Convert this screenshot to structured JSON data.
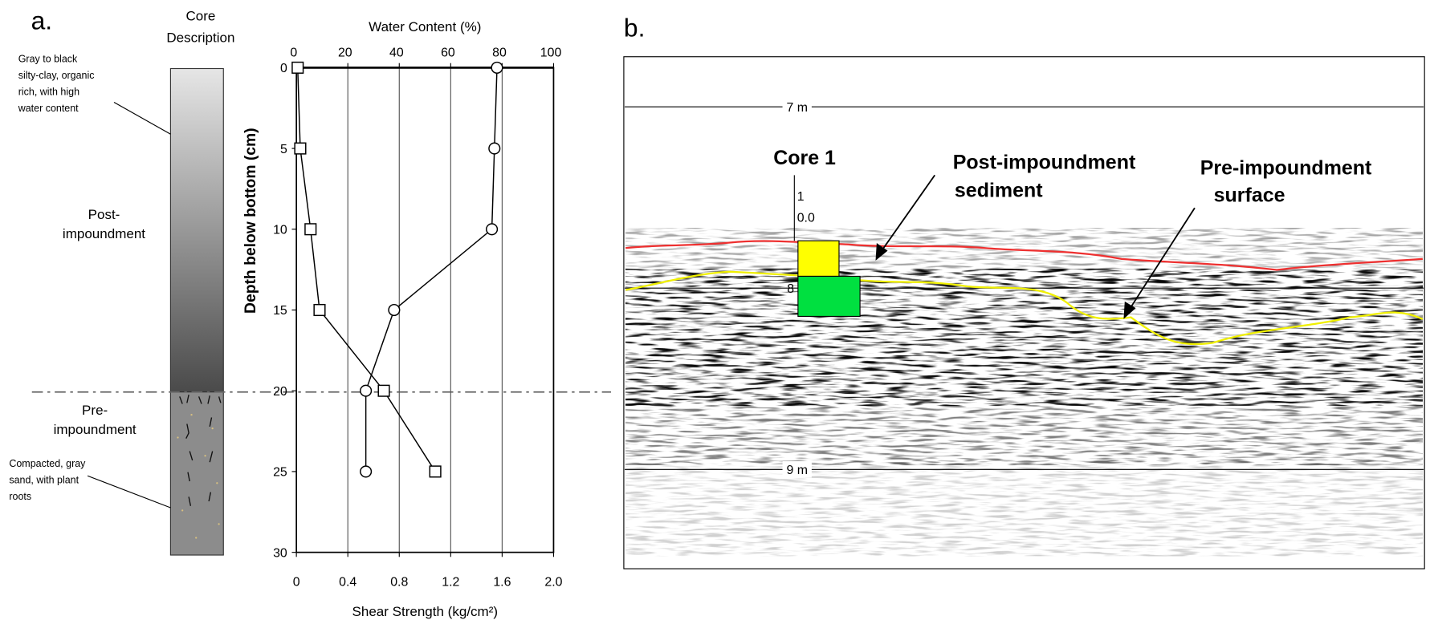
{
  "panel_a": {
    "label": "a.",
    "core_heading": [
      "Core",
      "Description"
    ],
    "top_note": [
      "Gray to black",
      "silty-clay, organic",
      "rich, with high",
      "water content"
    ],
    "upper_unit": [
      "Post-",
      "impoundment"
    ],
    "lower_unit": [
      "Pre-",
      "impoundment"
    ],
    "bottom_note": [
      "Compacted, gray",
      "sand, with plant",
      "roots"
    ]
  },
  "chart_data": {
    "type": "line",
    "x2_label": "Water Content (%)",
    "y_label": "Depth below bottom (cm)",
    "x_label": "Shear Strength (kg/cm²)",
    "y": [
      0,
      5,
      10,
      15,
      20,
      25
    ],
    "series": [
      {
        "axis": "x2",
        "marker": "circle",
        "color": "#000000",
        "values": [
          78,
          77,
          76,
          38,
          27,
          27
        ]
      },
      {
        "axis": "x",
        "marker": "square",
        "color": "#000000",
        "values": [
          0.01,
          0.03,
          0.11,
          0.18,
          0.68,
          1.08
        ]
      }
    ],
    "ylim": [
      0,
      30
    ],
    "yticks": [
      0,
      5,
      10,
      15,
      20,
      25,
      30
    ],
    "xlim": [
      0,
      2
    ],
    "xticks": [
      0,
      0.4,
      0.8,
      1.2,
      1.6,
      {
        "value": 2,
        "label": "2.0"
      }
    ],
    "x2lim": [
      0,
      100
    ],
    "x2ticks": [
      0,
      20,
      40,
      60,
      80,
      100
    ],
    "grid": true
  },
  "panel_b": {
    "label": "b.",
    "depth_top": "7 m",
    "depth_mid": "8",
    "depth_bottom": "9 m",
    "core": "Core 1",
    "core_scale": [
      "1",
      "0.0"
    ],
    "post_label": [
      "Post-impoundment",
      "sediment"
    ],
    "pre_label": [
      "Pre-impoundment",
      "surface"
    ]
  }
}
